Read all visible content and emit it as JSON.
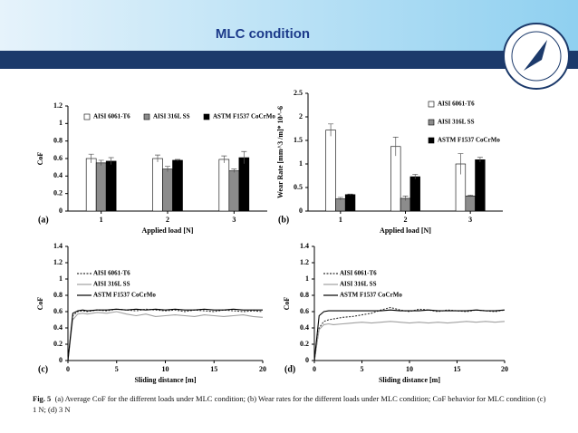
{
  "header": {
    "title": "MLC condition"
  },
  "chart_data": [
    {
      "type": "bar",
      "panel_label": "(a)",
      "xlabel": "Applied load  [N]",
      "ylabel": "CoF",
      "categories": [
        "1",
        "2",
        "3"
      ],
      "series": [
        {
          "name": "AISI 6061-T6",
          "color": "#ffffff",
          "values": [
            0.6,
            0.6,
            0.59
          ],
          "errors": [
            0.05,
            0.04,
            0.04
          ]
        },
        {
          "name": "AISI 316L SS",
          "color": "#8c8c8c",
          "values": [
            0.55,
            0.48,
            0.46
          ],
          "errors": [
            0.03,
            0.03,
            0.02
          ]
        },
        {
          "name": "ASTM F1537 CoCrMo",
          "color": "#000000",
          "values": [
            0.57,
            0.58,
            0.61
          ],
          "errors": [
            0.04,
            0.01,
            0.07
          ]
        }
      ],
      "ylim": [
        0,
        1.2
      ],
      "yticks": [
        0,
        0.2,
        0.4,
        0.6,
        0.8,
        1,
        1.2
      ],
      "legend": "top"
    },
    {
      "type": "bar",
      "panel_label": "(b)",
      "xlabel": "Applied load [N]",
      "ylabel": "Wear Rate [mm^3 /m]* 10^-6",
      "categories": [
        "1",
        "2",
        "3"
      ],
      "series": [
        {
          "name": "AISI 6061-T6",
          "color": "#ffffff",
          "values": [
            1.72,
            1.37,
            1.0
          ],
          "errors": [
            0.13,
            0.2,
            0.22
          ]
        },
        {
          "name": "AISI 316L SS",
          "color": "#8c8c8c",
          "values": [
            0.26,
            0.27,
            0.32
          ],
          "errors": [
            0.03,
            0.05,
            0.02
          ]
        },
        {
          "name": "ASTM F1537 CoCrMo",
          "color": "#000000",
          "values": [
            0.35,
            0.73,
            1.09
          ],
          "errors": [
            0.01,
            0.05,
            0.05
          ]
        }
      ],
      "ylim": [
        0,
        2.5
      ],
      "yticks": [
        0,
        0.5,
        1,
        1.5,
        2,
        2.5
      ],
      "legend": "upper-right"
    },
    {
      "type": "line",
      "panel_label": "(c)",
      "xlabel": "Sliding distance [m]",
      "ylabel": "CoF",
      "x": [
        0,
        0.5,
        1,
        1.5,
        2,
        3,
        4,
        5,
        6,
        7,
        8,
        9,
        10,
        11,
        12,
        13,
        14,
        15,
        16,
        17,
        18,
        19,
        20
      ],
      "series": [
        {
          "name": "AISI 6061-T6",
          "color": "#333333",
          "linestyle": "dashed",
          "values": [
            0,
            0.55,
            0.6,
            0.61,
            0.6,
            0.62,
            0.61,
            0.63,
            0.62,
            0.61,
            0.63,
            0.62,
            0.61,
            0.62,
            0.6,
            0.62,
            0.61,
            0.6,
            0.62,
            0.61,
            0.6,
            0.61,
            0.6
          ]
        },
        {
          "name": "AISI 316L SS",
          "color": "#a0a0a0",
          "linestyle": "solid",
          "values": [
            0,
            0.5,
            0.57,
            0.58,
            0.57,
            0.59,
            0.58,
            0.6,
            0.57,
            0.55,
            0.57,
            0.54,
            0.55,
            0.56,
            0.55,
            0.54,
            0.56,
            0.55,
            0.54,
            0.55,
            0.56,
            0.54,
            0.53
          ]
        },
        {
          "name": "ASTM F1537 CoCrMo",
          "color": "#000000",
          "linestyle": "solid",
          "values": [
            0,
            0.58,
            0.61,
            0.62,
            0.61,
            0.62,
            0.62,
            0.63,
            0.62,
            0.63,
            0.62,
            0.63,
            0.62,
            0.63,
            0.62,
            0.62,
            0.63,
            0.62,
            0.62,
            0.63,
            0.62,
            0.62,
            0.62
          ]
        }
      ],
      "xlim": [
        0,
        20
      ],
      "xticks": [
        0,
        5,
        10,
        15,
        20
      ],
      "ylim": [
        0,
        1.4
      ],
      "yticks": [
        0,
        0.2,
        0.4,
        0.6,
        0.8,
        1,
        1.2,
        1.4
      ],
      "legend": "upper-left"
    },
    {
      "type": "line",
      "panel_label": "(d)",
      "xlabel": "Sliding distance [m]",
      "ylabel": "CoF",
      "x": [
        0,
        0.5,
        1,
        1.5,
        2,
        3,
        4,
        5,
        6,
        7,
        8,
        9,
        10,
        11,
        12,
        13,
        14,
        15,
        16,
        17,
        18,
        19,
        20
      ],
      "series": [
        {
          "name": "AISI 6061-T6",
          "color": "#333333",
          "linestyle": "dashed",
          "values": [
            0,
            0.4,
            0.48,
            0.5,
            0.51,
            0.53,
            0.54,
            0.56,
            0.58,
            0.62,
            0.65,
            0.62,
            0.6,
            0.63,
            0.62,
            0.6,
            0.62,
            0.61,
            0.6,
            0.62,
            0.61,
            0.6,
            0.62
          ]
        },
        {
          "name": "AISI 316L SS",
          "color": "#a0a0a0",
          "linestyle": "solid",
          "values": [
            0,
            0.38,
            0.44,
            0.45,
            0.44,
            0.45,
            0.46,
            0.47,
            0.46,
            0.47,
            0.48,
            0.47,
            0.46,
            0.47,
            0.46,
            0.47,
            0.46,
            0.47,
            0.48,
            0.47,
            0.48,
            0.47,
            0.48
          ]
        },
        {
          "name": "ASTM F1537 CoCrMo",
          "color": "#000000",
          "linestyle": "solid",
          "values": [
            0,
            0.55,
            0.6,
            0.61,
            0.61,
            0.61,
            0.61,
            0.61,
            0.61,
            0.61,
            0.62,
            0.61,
            0.61,
            0.61,
            0.62,
            0.61,
            0.61,
            0.61,
            0.61,
            0.62,
            0.61,
            0.61,
            0.62
          ]
        }
      ],
      "xlim": [
        0,
        20
      ],
      "xticks": [
        0,
        5,
        10,
        15,
        20
      ],
      "ylim": [
        0,
        1.4
      ],
      "yticks": [
        0,
        0.2,
        0.4,
        0.6,
        0.8,
        1,
        1.2,
        1.4
      ],
      "legend": "upper-left"
    }
  ],
  "caption": {
    "label": "Fig. 5",
    "text": "(a) Average CoF for the different loads under MLC condition; (b) Wear rates for the different loads under MLC condition; CoF behavior for MLC condition (c) 1 N; (d) 3 N"
  }
}
